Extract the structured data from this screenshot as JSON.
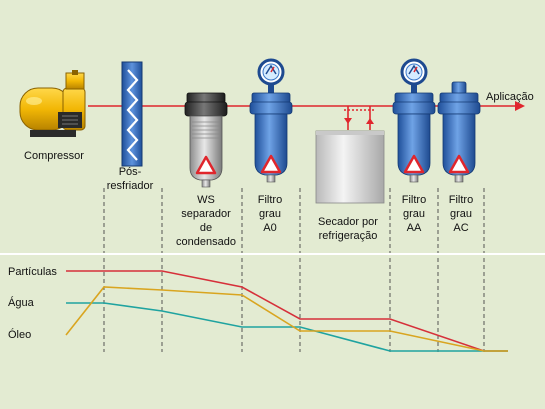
{
  "components": {
    "compressor": "Compressor",
    "aftercooler": [
      "Pós-",
      "resfriador"
    ],
    "ws_separator": [
      "WS",
      "separador",
      "de",
      "condensado"
    ],
    "filter_a0": [
      "Filtro",
      "grau",
      "A0"
    ],
    "dryer": [
      "Secador por",
      "refrigeração"
    ],
    "filter_aa": [
      "Filtro",
      "grau",
      "AA"
    ],
    "filter_ac": [
      "Filtro",
      "grau",
      "AC"
    ],
    "application": "Aplicação"
  },
  "legend": {
    "particles": "Partículas",
    "water": "Água",
    "oil": "Óleo"
  },
  "colors": {
    "background": "#e3ebd2",
    "pipe": "#e0262d",
    "particles": "#d6303a",
    "water": "#1fa3a0",
    "oil": "#d9a520",
    "filter_blue": "#3b77c8",
    "compressor_yellow": "#f2b705",
    "warning": "#e0262d"
  },
  "icons": {
    "compressor": "air-compressor-icon",
    "aftercooler": "heat-exchanger-icon",
    "separator": "condensate-separator-icon",
    "filter": "compressed-air-filter-icon",
    "dryer": "refrigeration-dryer-icon",
    "gauge": "pressure-gauge-icon",
    "warning": "warning-triangle-icon"
  }
}
